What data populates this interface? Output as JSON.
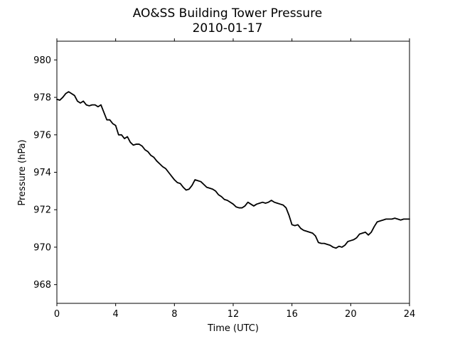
{
  "chart_data": {
    "type": "line",
    "title": "AO&SS Building Tower Pressure",
    "subtitle": "2010-01-17",
    "xlabel": "Time (UTC)",
    "ylabel": "Pressure (hPa)",
    "xlim": [
      0,
      24
    ],
    "ylim": [
      967,
      981
    ],
    "xticks": [
      0,
      4,
      8,
      12,
      16,
      20,
      24
    ],
    "yticks": [
      968,
      970,
      972,
      974,
      976,
      978,
      980
    ],
    "grid": false,
    "line_color": "#000000",
    "series": [
      {
        "x": [
          0,
          0.2,
          0.4,
          0.6,
          0.8,
          1.0,
          1.2,
          1.4,
          1.6,
          1.8,
          2.0,
          2.2,
          2.4,
          2.6,
          2.8,
          3.0,
          3.2,
          3.4,
          3.6,
          3.8,
          4.0,
          4.2,
          4.4,
          4.6,
          4.8,
          5.0,
          5.2,
          5.4,
          5.6,
          5.8,
          6.0,
          6.2,
          6.4,
          6.6,
          6.8,
          7.0,
          7.2,
          7.4,
          7.6,
          7.8,
          8.0,
          8.2,
          8.4,
          8.6,
          8.8,
          9.0,
          9.2,
          9.4,
          9.6,
          9.8,
          10.0,
          10.2,
          10.4,
          10.6,
          10.8,
          11.0,
          11.2,
          11.4,
          11.6,
          11.8,
          12.0,
          12.2,
          12.4,
          12.6,
          12.8,
          13.0,
          13.2,
          13.4,
          13.6,
          13.8,
          14.0,
          14.2,
          14.4,
          14.6,
          14.8,
          15.0,
          15.2,
          15.4,
          15.6,
          15.8,
          16.0,
          16.2,
          16.4,
          16.6,
          16.8,
          17.0,
          17.2,
          17.4,
          17.6,
          17.8,
          18.0,
          18.2,
          18.4,
          18.6,
          18.8,
          19.0,
          19.2,
          19.4,
          19.6,
          19.8,
          20.0,
          20.2,
          20.4,
          20.6,
          20.8,
          21.0,
          21.2,
          21.4,
          21.6,
          21.8,
          22.0,
          22.2,
          22.4,
          22.6,
          22.8,
          23.0,
          23.2,
          23.4,
          23.6,
          23.8,
          24.0
        ],
        "y": [
          977.9,
          977.85,
          978.0,
          978.2,
          978.3,
          978.2,
          978.1,
          977.8,
          977.7,
          977.8,
          977.6,
          977.55,
          977.6,
          977.6,
          977.5,
          977.6,
          977.2,
          976.8,
          976.8,
          976.6,
          976.5,
          976.0,
          976.0,
          975.8,
          975.9,
          975.6,
          975.45,
          975.5,
          975.5,
          975.4,
          975.2,
          975.1,
          974.9,
          974.8,
          974.6,
          974.45,
          974.3,
          974.2,
          974.0,
          973.8,
          973.6,
          973.45,
          973.4,
          973.2,
          973.05,
          973.1,
          973.3,
          973.6,
          973.55,
          973.5,
          973.35,
          973.2,
          973.15,
          973.1,
          973.0,
          972.8,
          972.7,
          972.55,
          972.5,
          972.4,
          972.3,
          972.15,
          972.1,
          972.1,
          972.2,
          972.4,
          972.3,
          972.2,
          972.3,
          972.35,
          972.4,
          972.35,
          972.4,
          972.5,
          972.4,
          972.35,
          972.3,
          972.25,
          972.1,
          971.7,
          971.2,
          971.15,
          971.2,
          971.0,
          970.9,
          970.85,
          970.8,
          970.75,
          970.6,
          970.25,
          970.2,
          970.2,
          970.15,
          970.1,
          970.0,
          969.95,
          970.05,
          970.0,
          970.1,
          970.3,
          970.35,
          970.4,
          970.5,
          970.7,
          970.75,
          970.8,
          970.65,
          970.8,
          971.1,
          971.35,
          971.4,
          971.45,
          971.5,
          971.5,
          971.5,
          971.55,
          971.5,
          971.45,
          971.5,
          971.5,
          971.5
        ]
      }
    ]
  }
}
